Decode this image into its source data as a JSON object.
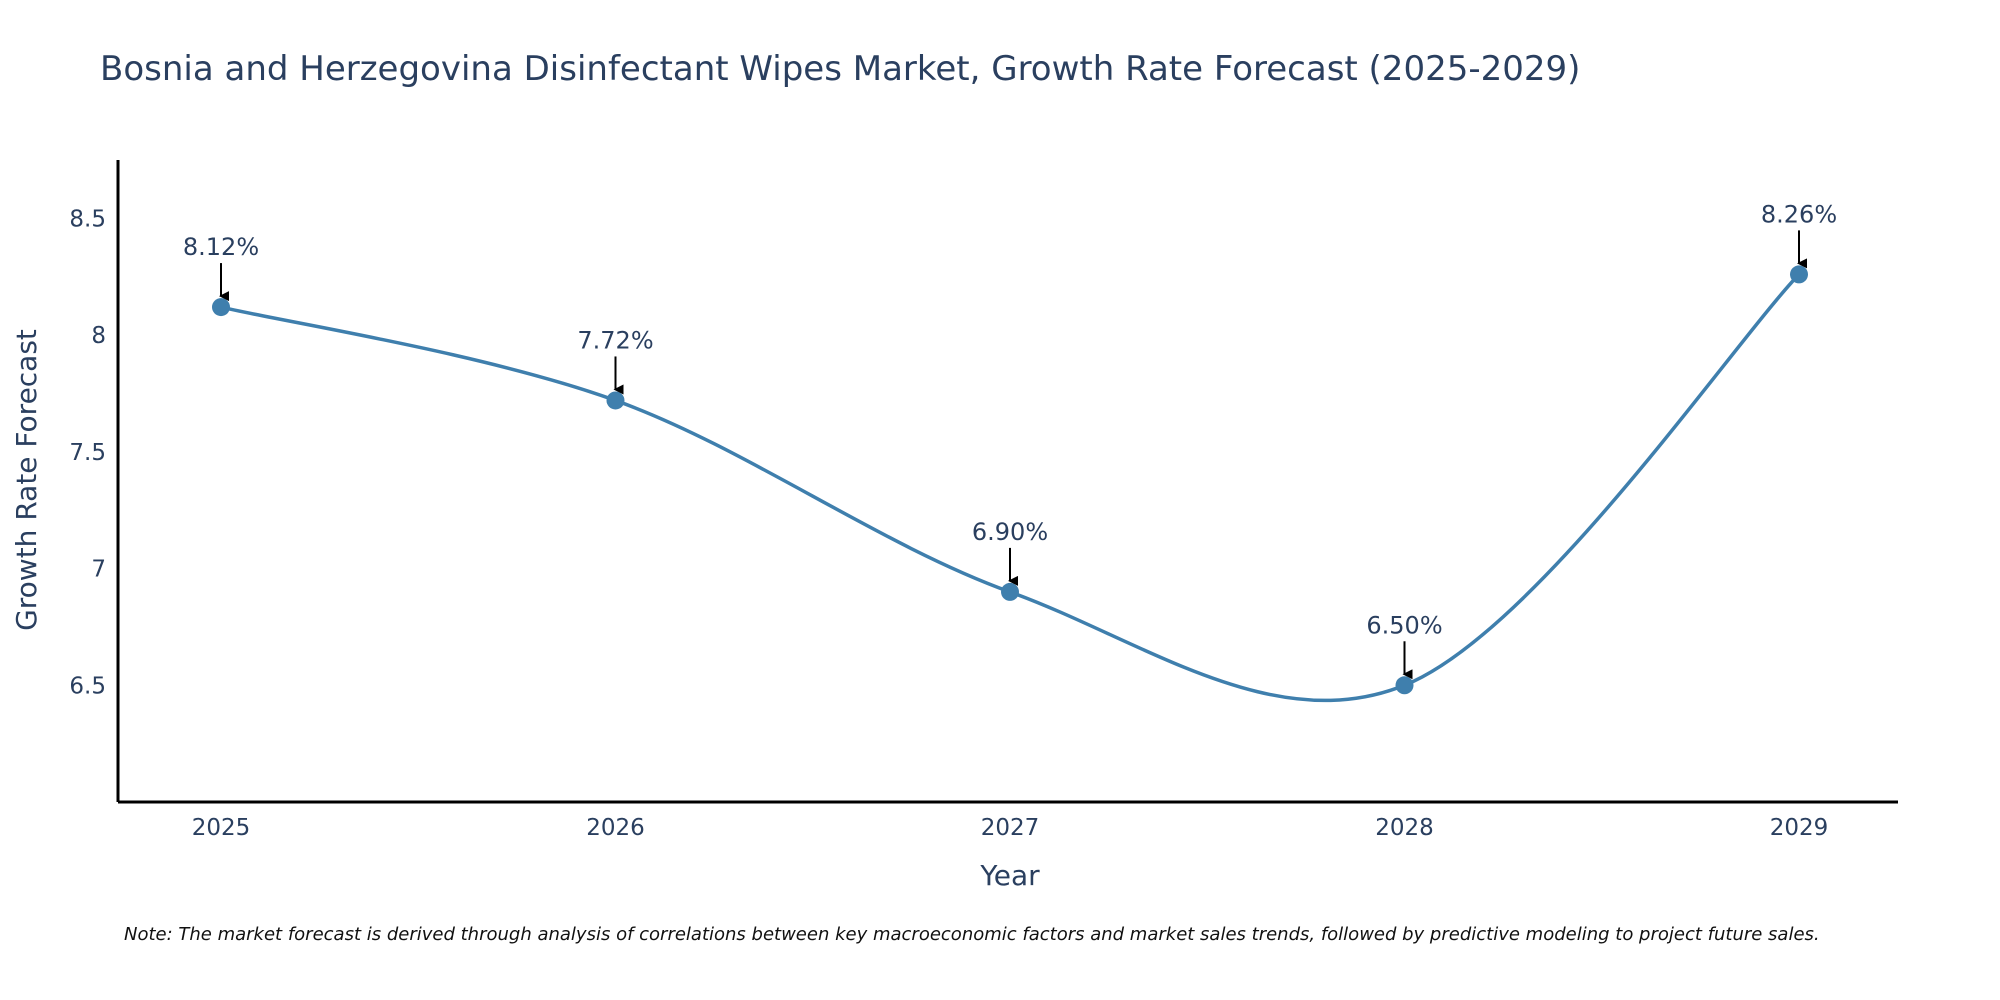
{
  "chart_data": {
    "type": "line",
    "title": "Bosnia and Herzegovina Disinfectant Wipes Market, Growth Rate Forecast (2025-2029)",
    "xlabel": "Year",
    "ylabel": "Growth Rate Forecast",
    "categories": [
      "2025",
      "2026",
      "2027",
      "2028",
      "2029"
    ],
    "series": [
      {
        "name": "Growth Rate Forecast",
        "values": [
          8.12,
          7.72,
          6.9,
          6.5,
          8.26
        ],
        "labels": [
          "8.12%",
          "7.72%",
          "6.90%",
          "6.50%",
          "8.26%"
        ]
      }
    ],
    "ylim": [
      6.0,
      8.75
    ],
    "yticks": [
      6.5,
      7,
      7.5,
      8,
      8.5
    ],
    "ytick_labels": [
      "6.5",
      "7",
      "7.5",
      "8",
      "8.5"
    ],
    "grid": false,
    "line_color": "#3f7fad",
    "marker_color": "#3f7fad",
    "arrow_color": "#000000",
    "axis_color": "#000000",
    "note": "Note: The market forecast is derived through analysis of correlations between key macroeconomic factors and market sales trends, followed by predictive modeling to project future sales."
  }
}
